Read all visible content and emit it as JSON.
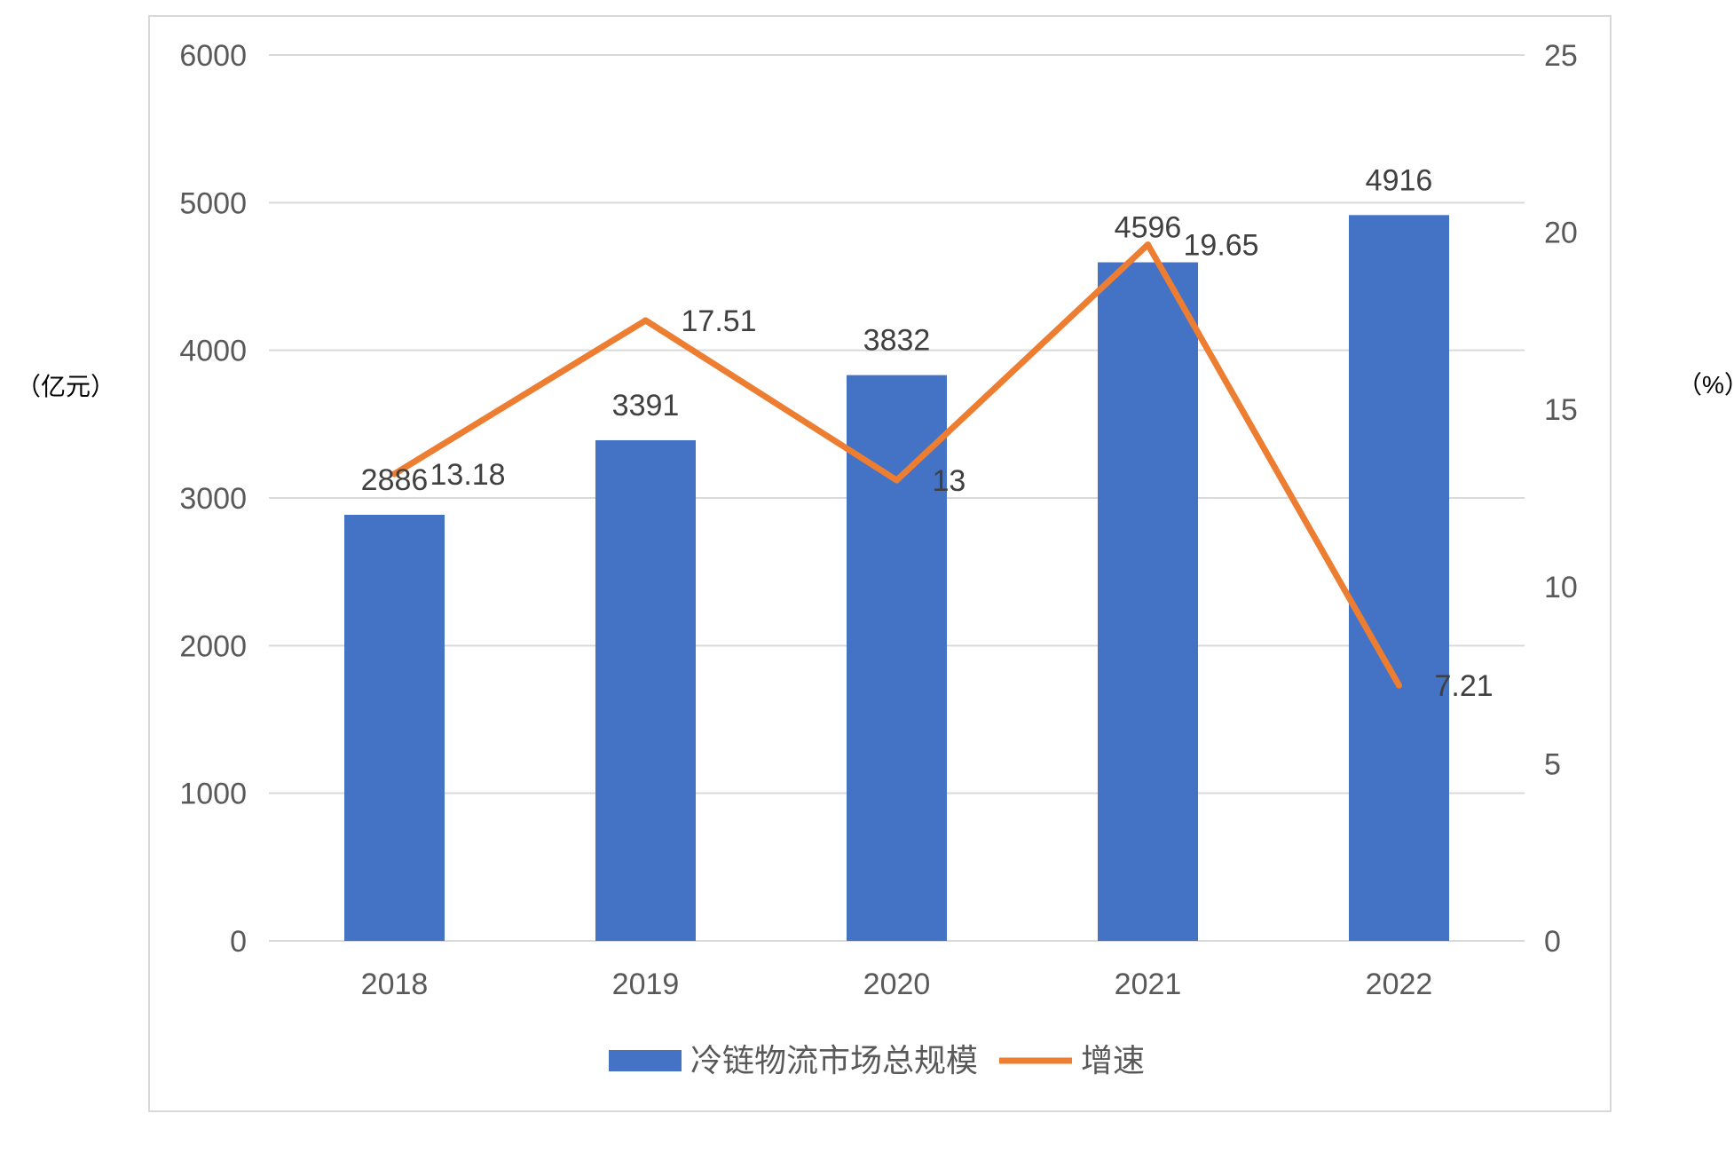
{
  "chart_data": {
    "type": "bar",
    "categories": [
      "2018",
      "2019",
      "2020",
      "2021",
      "2022"
    ],
    "series": [
      {
        "name": "冷链物流市场总规模",
        "type": "bar",
        "axis": "left",
        "values": [
          2886,
          3391,
          3832,
          4596,
          4916
        ],
        "labels": [
          "2886",
          "3391",
          "3832",
          "4596",
          "4916"
        ]
      },
      {
        "name": "增速",
        "type": "line",
        "axis": "right",
        "values": [
          13.18,
          17.51,
          13,
          19.65,
          7.21
        ],
        "labels": [
          "13.18",
          "17.51",
          "13",
          "19.65",
          "7.21"
        ]
      }
    ],
    "y_left": {
      "unit": "（亿元）",
      "min": 0,
      "max": 6000,
      "ticks": [
        "0",
        "1000",
        "2000",
        "3000",
        "4000",
        "5000",
        "6000"
      ]
    },
    "y_right": {
      "unit": "（%）",
      "min": 0,
      "max": 25,
      "ticks": [
        "0",
        "5",
        "10",
        "15",
        "20",
        "25"
      ]
    },
    "grid": true,
    "legend_position": "bottom",
    "colors": {
      "bar": "#4472C4",
      "line": "#ED7D31",
      "grid": "#D9D9D9",
      "frame": "#D9D9D9"
    }
  }
}
